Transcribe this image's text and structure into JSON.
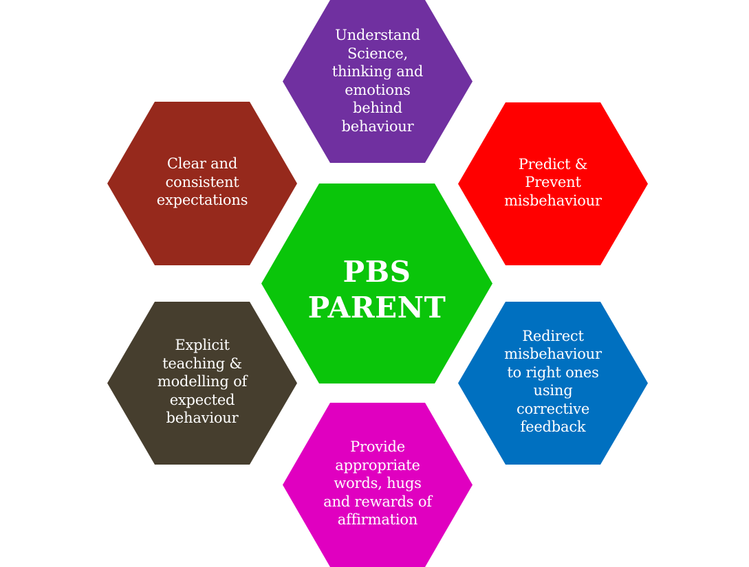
{
  "diagram": {
    "center": {
      "label": "PBS\nPARENT",
      "color": "#0ac50a"
    },
    "top": {
      "label": "Understand\nScience,\nthinking and\nemotions\nbehind\nbehaviour",
      "color": "#7030a0"
    },
    "upper_left": {
      "label": "Clear and\nconsistent\nexpectations",
      "color": "#96291c"
    },
    "upper_right": {
      "label": "Predict &\nPrevent\nmisbehaviour",
      "color": "#ff0000"
    },
    "lower_left": {
      "label": "Explicit\nteaching &\nmodelling of\nexpected\nbehaviour",
      "color": "#463e2e"
    },
    "lower_right": {
      "label": "Redirect\nmisbehaviour\nto right ones\nusing\ncorrective\nfeedback",
      "color": "#0070c0"
    },
    "bottom": {
      "label": "Provide\nappropriate\nwords, hugs\nand rewards of\naffirmation",
      "color": "#e000c0"
    }
  }
}
